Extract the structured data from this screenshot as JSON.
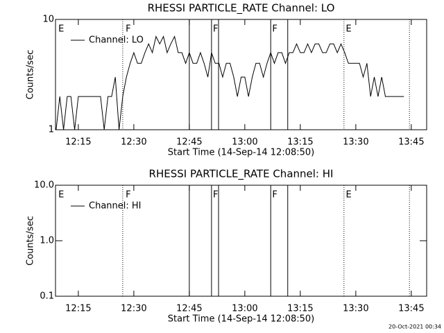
{
  "chart_data": [
    {
      "type": "line",
      "title": "RHESSI PARTICLE_RATE Channel: LO",
      "xlabel": "Start Time (14-Sep-14 12:08:50)",
      "ylabel": "Counts/sec",
      "log_y": true,
      "xlim": [
        8.83,
        109.15
      ],
      "ylim": [
        1,
        10
      ],
      "xticks": [
        {
          "value": 15,
          "label": "12:15"
        },
        {
          "value": 30,
          "label": "12:30"
        },
        {
          "value": 45,
          "label": "12:45"
        },
        {
          "value": 60,
          "label": "13:00"
        },
        {
          "value": 75,
          "label": "13:15"
        },
        {
          "value": 90,
          "label": "13:30"
        },
        {
          "value": 105,
          "label": "13:45"
        }
      ],
      "yticks": [
        1,
        10
      ],
      "x": [
        9,
        10,
        11,
        12,
        13,
        14,
        15,
        16,
        17,
        18,
        19,
        20,
        21,
        22,
        23,
        24,
        25,
        26,
        27,
        28,
        29,
        30,
        31,
        32,
        33,
        34,
        35,
        36,
        37,
        38,
        39,
        40,
        41,
        42,
        43,
        44,
        45,
        46,
        47,
        48,
        49,
        50,
        51,
        52,
        53,
        54,
        55,
        56,
        57,
        58,
        59,
        60,
        61,
        62,
        63,
        64,
        65,
        66,
        67,
        68,
        69,
        70,
        71,
        72,
        73,
        74,
        75,
        76,
        77,
        78,
        79,
        80,
        81,
        82,
        83,
        84,
        85,
        86,
        87,
        88,
        89,
        90,
        91,
        92,
        93,
        94,
        95,
        96,
        97,
        98,
        99,
        100,
        101,
        102,
        103
      ],
      "series": [
        {
          "name": "Channel: LO",
          "color": "#000000",
          "values": [
            1,
            2,
            1,
            2,
            2,
            1,
            2,
            2,
            2,
            2,
            2,
            2,
            2,
            1,
            2,
            2,
            3,
            1,
            2,
            3,
            4,
            5,
            4,
            4,
            5,
            6,
            5,
            7,
            6,
            7,
            5,
            6,
            7,
            5,
            5,
            4,
            5,
            4,
            4,
            5,
            4,
            3,
            5,
            4,
            4,
            3,
            4,
            4,
            3,
            2,
            3,
            3,
            2,
            3,
            4,
            4,
            3,
            4,
            5,
            4,
            5,
            5,
            4,
            5,
            5,
            6,
            5,
            5,
            6,
            5,
            6,
            6,
            5,
            5,
            6,
            6,
            5,
            6,
            5,
            4,
            4,
            4,
            4,
            3,
            4,
            2,
            3,
            2,
            3,
            2,
            2,
            2,
            2,
            2,
            2
          ]
        }
      ],
      "vlines": [
        {
          "x": 27.0,
          "style": "dotted"
        },
        {
          "x": 45.0,
          "style": "solid"
        },
        {
          "x": 51.0,
          "style": "solid"
        },
        {
          "x": 52.9,
          "style": "solid"
        },
        {
          "x": 67.0,
          "style": "solid"
        },
        {
          "x": 71.6,
          "style": "solid"
        },
        {
          "x": 86.8,
          "style": "dotted"
        },
        {
          "x": 104.5,
          "style": "dotted"
        }
      ],
      "flags": [
        {
          "x": 9.6,
          "label": "E"
        },
        {
          "x": 27.8,
          "label": "F"
        },
        {
          "x": 51.4,
          "label": "F"
        },
        {
          "x": 67.4,
          "label": "F"
        },
        {
          "x": 87.3,
          "label": "E"
        }
      ]
    },
    {
      "type": "line",
      "title": "RHESSI PARTICLE_RATE Channel: HI",
      "xlabel": "Start Time (14-Sep-14 12:08:50)",
      "ylabel": "Counts/sec",
      "log_y": true,
      "xlim": [
        8.83,
        109.15
      ],
      "ylim": [
        0.1,
        10
      ],
      "xticks": [
        {
          "value": 15,
          "label": "12:15"
        },
        {
          "value": 30,
          "label": "12:30"
        },
        {
          "value": 45,
          "label": "12:45"
        },
        {
          "value": 60,
          "label": "13:00"
        },
        {
          "value": 75,
          "label": "13:15"
        },
        {
          "value": 90,
          "label": "13:30"
        },
        {
          "value": 105,
          "label": "13:45"
        }
      ],
      "yticks": [
        0.1,
        {
          "value": 1,
          "label": "1.0"
        },
        {
          "value": 10,
          "label": "10.0"
        }
      ],
      "x": [],
      "series": [
        {
          "name": "Channel: HI",
          "color": "#000000",
          "values": []
        }
      ],
      "vlines": [
        {
          "x": 27.0,
          "style": "dotted"
        },
        {
          "x": 45.0,
          "style": "solid"
        },
        {
          "x": 51.0,
          "style": "solid"
        },
        {
          "x": 52.9,
          "style": "solid"
        },
        {
          "x": 67.0,
          "style": "solid"
        },
        {
          "x": 71.6,
          "style": "solid"
        },
        {
          "x": 86.8,
          "style": "dotted"
        },
        {
          "x": 104.5,
          "style": "dotted"
        }
      ],
      "flags": [
        {
          "x": 9.6,
          "label": "E"
        },
        {
          "x": 27.8,
          "label": "F"
        },
        {
          "x": 51.4,
          "label": "F"
        },
        {
          "x": 67.4,
          "label": "F"
        },
        {
          "x": 87.3,
          "label": "E"
        }
      ]
    }
  ],
  "footer": "20-Oct-2021 00:34"
}
